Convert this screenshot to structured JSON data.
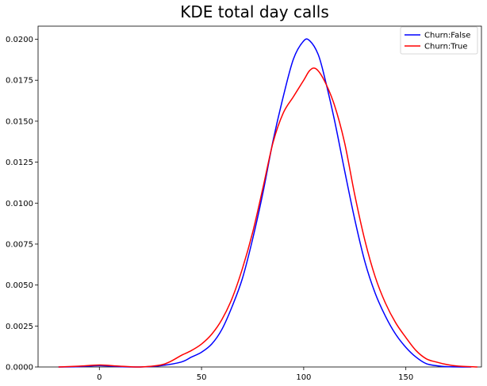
{
  "chart_data": {
    "type": "line",
    "title": "KDE total day calls",
    "xlabel": "",
    "ylabel": "",
    "xlim": [
      -30,
      187
    ],
    "ylim": [
      0,
      0.0208
    ],
    "xticks": [
      {
        "value": 0,
        "label": "0"
      },
      {
        "value": 50,
        "label": "50"
      },
      {
        "value": 100,
        "label": "100"
      },
      {
        "value": 150,
        "label": "150"
      }
    ],
    "yticks": [
      {
        "value": 0,
        "label": "0.0000"
      },
      {
        "value": 0.0025,
        "label": "0.0025"
      },
      {
        "value": 0.005,
        "label": "0.0050"
      },
      {
        "value": 0.0075,
        "label": "0.0075"
      },
      {
        "value": 0.01,
        "label": "0.0100"
      },
      {
        "value": 0.0125,
        "label": "0.0125"
      },
      {
        "value": 0.015,
        "label": "0.0150"
      },
      {
        "value": 0.0175,
        "label": "0.0175"
      },
      {
        "value": 0.02,
        "label": "0.0200"
      }
    ],
    "grid": false,
    "legend_position": "top-right",
    "series": [
      {
        "name": "Churn:False",
        "color": "#0000ff",
        "points": [
          [
            -20,
            0.0
          ],
          [
            -10,
            2e-05
          ],
          [
            0,
            8e-05
          ],
          [
            10,
            2e-05
          ],
          [
            20,
            0.0
          ],
          [
            30,
            8e-05
          ],
          [
            40,
            0.0003
          ],
          [
            45,
            0.0006
          ],
          [
            50,
            0.0009
          ],
          [
            55,
            0.0014
          ],
          [
            60,
            0.0023
          ],
          [
            65,
            0.0037
          ],
          [
            70,
            0.0054
          ],
          [
            75,
            0.0078
          ],
          [
            80,
            0.0106
          ],
          [
            85,
            0.0138
          ],
          [
            90,
            0.0165
          ],
          [
            95,
            0.0188
          ],
          [
            100,
            0.0199
          ],
          [
            103,
            0.0199
          ],
          [
            107,
            0.0191
          ],
          [
            110,
            0.0178
          ],
          [
            115,
            0.0151
          ],
          [
            120,
            0.012
          ],
          [
            125,
            0.009
          ],
          [
            130,
            0.0064
          ],
          [
            135,
            0.0045
          ],
          [
            140,
            0.0031
          ],
          [
            145,
            0.002
          ],
          [
            150,
            0.0012
          ],
          [
            155,
            0.0006
          ],
          [
            160,
            0.0002
          ],
          [
            165,
            8e-05
          ],
          [
            170,
            2e-05
          ],
          [
            182,
            0.0
          ]
        ]
      },
      {
        "name": "Churn:True",
        "color": "#ff0000",
        "points": [
          [
            -20,
            0.0
          ],
          [
            -10,
            5e-05
          ],
          [
            0,
            0.00012
          ],
          [
            10,
            5e-05
          ],
          [
            20,
            0.0
          ],
          [
            30,
            0.00012
          ],
          [
            35,
            0.00035
          ],
          [
            40,
            0.0007
          ],
          [
            45,
            0.001
          ],
          [
            50,
            0.0014
          ],
          [
            55,
            0.002
          ],
          [
            60,
            0.0029
          ],
          [
            65,
            0.0042
          ],
          [
            70,
            0.006
          ],
          [
            75,
            0.0082
          ],
          [
            80,
            0.0109
          ],
          [
            85,
            0.0137
          ],
          [
            90,
            0.0155
          ],
          [
            95,
            0.0165
          ],
          [
            100,
            0.0175
          ],
          [
            103,
            0.0181
          ],
          [
            106,
            0.0182
          ],
          [
            110,
            0.0175
          ],
          [
            115,
            0.016
          ],
          [
            120,
            0.0137
          ],
          [
            125,
            0.0105
          ],
          [
            130,
            0.0077
          ],
          [
            135,
            0.0055
          ],
          [
            140,
            0.0039
          ],
          [
            145,
            0.0027
          ],
          [
            150,
            0.0018
          ],
          [
            155,
            0.001
          ],
          [
            160,
            0.0005
          ],
          [
            165,
            0.0003
          ],
          [
            170,
            0.00015
          ],
          [
            175,
            6e-05
          ],
          [
            185,
            0.0
          ]
        ]
      }
    ]
  }
}
